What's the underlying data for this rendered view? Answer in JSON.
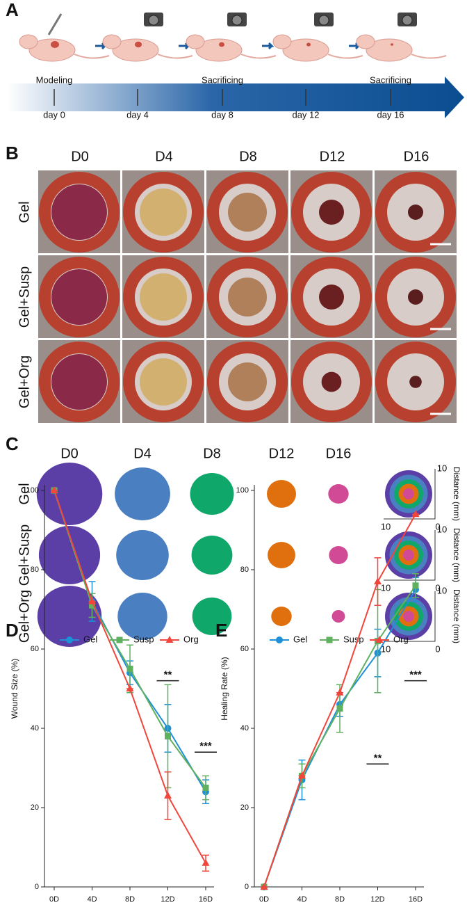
{
  "panel_a": {
    "letter": "A",
    "events": [
      "Modeling",
      "Sacrificing",
      "Sacrificing"
    ],
    "days": [
      "day 0",
      "day 4",
      "day 8",
      "day 12",
      "day 16"
    ]
  },
  "panel_b": {
    "letter": "B",
    "columns": [
      "D0",
      "D4",
      "D8",
      "D12",
      "D16"
    ],
    "rows": [
      "Gel",
      "Gel+Susp",
      "Gel+Org"
    ]
  },
  "panel_c": {
    "letter": "C",
    "columns": [
      "D0",
      "D4",
      "D8",
      "D12",
      "D16"
    ],
    "rows": [
      "Gel",
      "Gel+Susp",
      "Gel+Org"
    ],
    "axis_ticks": [
      "10",
      "0",
      "10"
    ],
    "axis_label": "Distance (mm)"
  },
  "chart_data": [
    {
      "type": "line",
      "panel_label": "D",
      "y_label": "Wound Size (%)",
      "categories": [
        "0D",
        "4D",
        "8D",
        "12D",
        "16D"
      ],
      "series": [
        {
          "name": "Gel",
          "color": "#1f8fd8",
          "marker": "circle",
          "values": [
            100,
            72,
            54,
            40,
            24
          ],
          "errors": [
            0,
            5,
            3,
            6,
            3
          ]
        },
        {
          "name": "Susp",
          "color": "#5fb05f",
          "marker": "square",
          "values": [
            100,
            71,
            55,
            38,
            25
          ],
          "errors": [
            0,
            3,
            6,
            13,
            3
          ]
        },
        {
          "name": "Org",
          "color": "#f0463c",
          "marker": "triangle",
          "values": [
            100,
            72,
            50,
            23,
            6
          ],
          "errors": [
            0,
            0,
            0,
            6,
            2
          ]
        }
      ],
      "ylim": [
        0,
        100
      ],
      "yticks": [
        0,
        20,
        40,
        60,
        80,
        100
      ],
      "annotations": [
        {
          "text": "**",
          "x": 3,
          "y": 52
        },
        {
          "text": "***",
          "x": 4,
          "y": 34
        }
      ]
    },
    {
      "type": "line",
      "panel_label": "E",
      "y_label": "Healing Rate (%)",
      "categories": [
        "0D",
        "4D",
        "8D",
        "12D",
        "16D"
      ],
      "series": [
        {
          "name": "Gel",
          "color": "#1f8fd8",
          "marker": "circle",
          "values": [
            0,
            27,
            46,
            59,
            75
          ],
          "errors": [
            0,
            5,
            3,
            6,
            3
          ]
        },
        {
          "name": "Susp",
          "color": "#5fb05f",
          "marker": "square",
          "values": [
            0,
            28,
            45,
            62,
            76
          ],
          "errors": [
            0,
            3,
            6,
            13,
            3
          ]
        },
        {
          "name": "Org",
          "color": "#f0463c",
          "marker": "triangle",
          "values": [
            0,
            28,
            49,
            77,
            94
          ],
          "errors": [
            0,
            0,
            0,
            6,
            0
          ]
        }
      ],
      "ylim": [
        0,
        100
      ],
      "yticks": [
        0,
        20,
        40,
        60,
        80,
        100
      ],
      "annotations": [
        {
          "text": "**",
          "x": 3,
          "y": 31
        },
        {
          "text": "***",
          "x": 4,
          "y": 52
        }
      ]
    }
  ]
}
